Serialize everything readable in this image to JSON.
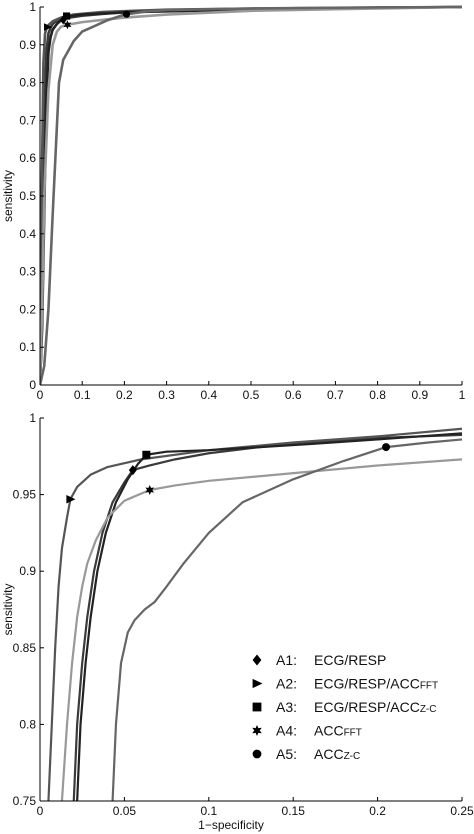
{
  "chart_data": [
    {
      "type": "line",
      "xlabel": "",
      "ylabel": "sensitivity",
      "xlim": [
        0,
        1
      ],
      "ylim": [
        0,
        1
      ],
      "xticks": [
        "0",
        "0.1",
        "0.2",
        "0.3",
        "0.4",
        "0.5",
        "0.6",
        "0.7",
        "0.8",
        "0.9",
        "1"
      ],
      "yticks": [
        "0",
        "0.1",
        "0.2",
        "0.3",
        "0.4",
        "0.5",
        "0.6",
        "0.7",
        "0.8",
        "0.9",
        "1"
      ],
      "series": [
        {
          "marker": "diamond",
          "color": "#3a3a3a",
          "x": [
            0,
            0.003,
            0.006,
            0.01,
            0.015,
            0.02,
            0.025,
            0.03,
            0.035,
            0.045,
            0.055,
            0.07,
            0.1,
            0.15,
            0.2,
            0.3,
            0.5,
            0.7,
            1.0
          ],
          "y": [
            0,
            0.1,
            0.4,
            0.7,
            0.88,
            0.93,
            0.945,
            0.955,
            0.96,
            0.965,
            0.968,
            0.972,
            0.977,
            0.982,
            0.986,
            0.99,
            0.994,
            0.997,
            1.0
          ],
          "point": [
            0.055,
            0.966
          ]
        },
        {
          "marker": "triangle",
          "color": "#555555",
          "x": [
            0,
            0.004,
            0.008,
            0.012,
            0.016,
            0.02,
            0.03,
            0.05,
            0.08,
            0.15,
            0.3,
            0.5,
            1.0
          ],
          "y": [
            0,
            0.5,
            0.85,
            0.93,
            0.945,
            0.952,
            0.962,
            0.972,
            0.98,
            0.987,
            0.993,
            0.996,
            1.0
          ],
          "point": [
            0.018,
            0.947
          ]
        },
        {
          "marker": "square",
          "color": "#222222",
          "x": [
            0,
            0.005,
            0.01,
            0.015,
            0.02,
            0.025,
            0.03,
            0.04,
            0.05,
            0.065,
            0.1,
            0.2,
            0.4,
            0.7,
            1.0
          ],
          "y": [
            0,
            0.15,
            0.45,
            0.75,
            0.88,
            0.92,
            0.94,
            0.955,
            0.965,
            0.975,
            0.98,
            0.986,
            0.991,
            0.996,
            1.0
          ],
          "point": [
            0.063,
            0.976
          ]
        },
        {
          "marker": "star",
          "color": "#999999",
          "x": [
            0,
            0.005,
            0.01,
            0.02,
            0.03,
            0.04,
            0.05,
            0.065,
            0.1,
            0.15,
            0.2,
            0.3,
            0.5,
            0.8,
            1.0
          ],
          "y": [
            0,
            0.2,
            0.5,
            0.78,
            0.9,
            0.935,
            0.948,
            0.953,
            0.96,
            0.966,
            0.972,
            0.98,
            0.99,
            0.996,
            1.0
          ],
          "point": [
            0.065,
            0.953
          ]
        },
        {
          "marker": "circle",
          "color": "#666666",
          "x": [
            0,
            0.01,
            0.02,
            0.03,
            0.045,
            0.055,
            0.065,
            0.08,
            0.1,
            0.13,
            0.16,
            0.2,
            0.25,
            0.3,
            0.5,
            0.8,
            1.0
          ],
          "y": [
            0,
            0.05,
            0.2,
            0.45,
            0.8,
            0.86,
            0.88,
            0.91,
            0.935,
            0.95,
            0.965,
            0.98,
            0.988,
            0.992,
            0.996,
            0.999,
            1.0
          ],
          "point": [
            0.205,
            0.981
          ]
        }
      ]
    },
    {
      "type": "line",
      "xlabel": "1−specificity",
      "ylabel": "sensitivity",
      "xlim": [
        0,
        0.25
      ],
      "ylim": [
        0.75,
        1
      ],
      "xticks": [
        "0",
        "0.05",
        "0.1",
        "0.15",
        "0.2",
        "0.25"
      ],
      "yticks": [
        "0.75",
        "0.8",
        "0.85",
        "0.9",
        "0.95",
        "1"
      ],
      "legend": [
        {
          "marker": "diamond",
          "label": "A1:",
          "name": "ECG/RESP",
          "sub": ""
        },
        {
          "marker": "triangle",
          "label": "A2:",
          "name": "ECG/RESP/ACC",
          "sub": "FFT"
        },
        {
          "marker": "square",
          "label": "A3:",
          "name": "ECG/RESP/ACC",
          "sub": "Z-C"
        },
        {
          "marker": "star",
          "label": "A4:",
          "name": "ACC",
          "sub": "FFT"
        },
        {
          "marker": "circle",
          "label": "A5:",
          "name": "ACC",
          "sub": "Z-C"
        }
      ],
      "legend_position": "bottom-right",
      "series": [
        {
          "marker": "diamond",
          "color": "#3a3a3a",
          "x": [
            0.02,
            0.022,
            0.025,
            0.028,
            0.032,
            0.037,
            0.043,
            0.05,
            0.055,
            0.065,
            0.08,
            0.1,
            0.13,
            0.16,
            0.2,
            0.25
          ],
          "y": [
            0.75,
            0.8,
            0.84,
            0.87,
            0.9,
            0.925,
            0.945,
            0.958,
            0.966,
            0.969,
            0.973,
            0.977,
            0.981,
            0.984,
            0.987,
            0.989
          ],
          "point": [
            0.055,
            0.966
          ]
        },
        {
          "marker": "triangle",
          "color": "#555555",
          "x": [
            0.005,
            0.007,
            0.009,
            0.011,
            0.013,
            0.016,
            0.018,
            0.022,
            0.03,
            0.04,
            0.06,
            0.1,
            0.15,
            0.2,
            0.25
          ],
          "y": [
            0.75,
            0.8,
            0.85,
            0.89,
            0.915,
            0.935,
            0.947,
            0.955,
            0.963,
            0.968,
            0.973,
            0.979,
            0.984,
            0.988,
            0.993
          ],
          "point": [
            0.018,
            0.947
          ]
        },
        {
          "marker": "square",
          "color": "#222222",
          "x": [
            0.022,
            0.024,
            0.027,
            0.03,
            0.034,
            0.039,
            0.045,
            0.052,
            0.058,
            0.063,
            0.075,
            0.1,
            0.13,
            0.16,
            0.2,
            0.25
          ],
          "y": [
            0.75,
            0.8,
            0.84,
            0.87,
            0.9,
            0.925,
            0.945,
            0.96,
            0.97,
            0.976,
            0.978,
            0.979,
            0.981,
            0.983,
            0.986,
            0.99
          ],
          "point": [
            0.063,
            0.976
          ]
        },
        {
          "marker": "star",
          "color": "#999999",
          "x": [
            0.013,
            0.016,
            0.019,
            0.022,
            0.025,
            0.028,
            0.033,
            0.04,
            0.05,
            0.065,
            0.08,
            0.1,
            0.13,
            0.16,
            0.2,
            0.25
          ],
          "y": [
            0.75,
            0.8,
            0.84,
            0.87,
            0.89,
            0.905,
            0.92,
            0.935,
            0.946,
            0.953,
            0.956,
            0.959,
            0.962,
            0.965,
            0.969,
            0.973
          ],
          "point": [
            0.065,
            0.953
          ]
        },
        {
          "marker": "circle",
          "color": "#666666",
          "x": [
            0.043,
            0.045,
            0.048,
            0.052,
            0.056,
            0.062,
            0.068,
            0.075,
            0.085,
            0.1,
            0.12,
            0.15,
            0.18,
            0.205,
            0.23,
            0.25
          ],
          "y": [
            0.75,
            0.8,
            0.84,
            0.86,
            0.868,
            0.875,
            0.88,
            0.89,
            0.905,
            0.925,
            0.945,
            0.96,
            0.972,
            0.981,
            0.984,
            0.986
          ],
          "point": [
            0.205,
            0.981
          ]
        }
      ]
    }
  ]
}
